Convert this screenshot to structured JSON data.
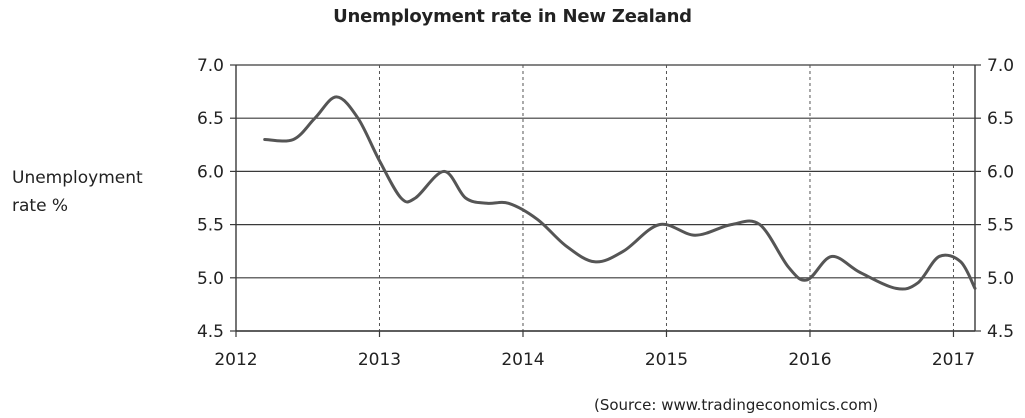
{
  "chart_data": {
    "type": "line",
    "title": "Unemployment rate in New Zealand",
    "xlabel": "",
    "ylabel": "Unemployment\nrate %",
    "source": "(Source: www.tradingeconomics.com)",
    "xlim": [
      2012,
      2017.15
    ],
    "ylim": [
      4.5,
      7.0
    ],
    "x_ticks": [
      "2012",
      "2013",
      "2014",
      "2015",
      "2016",
      "2017"
    ],
    "y_ticks_left": [
      "7.0",
      "6.5",
      "6.0",
      "5.5",
      "5.0",
      "4.5"
    ],
    "y_ticks_right": [
      "7.0",
      "6.5",
      "6.0",
      "5.5",
      "5.0",
      "4.5"
    ],
    "grid": {
      "horizontal": "solid",
      "vertical": "dashed"
    },
    "line_color": "#555555",
    "series": [
      {
        "x": [
          2012.2,
          2012.4,
          2012.55,
          2012.7,
          2012.85,
          2013.0,
          2013.15,
          2013.25,
          2013.45,
          2013.6,
          2013.75,
          2013.9,
          2014.1,
          2014.3,
          2014.5,
          2014.7,
          2014.95,
          2015.2,
          2015.45,
          2015.65,
          2015.85,
          2015.98,
          2016.15,
          2016.35,
          2016.6,
          2016.75,
          2016.9,
          2017.05,
          2017.15
        ],
        "y": [
          6.3,
          6.3,
          6.5,
          6.7,
          6.5,
          6.1,
          5.75,
          5.75,
          6.0,
          5.75,
          5.7,
          5.7,
          5.55,
          5.3,
          5.15,
          5.25,
          5.5,
          5.4,
          5.5,
          5.5,
          5.1,
          4.98,
          5.2,
          5.05,
          4.9,
          4.95,
          5.2,
          5.15,
          4.9
        ]
      }
    ]
  }
}
